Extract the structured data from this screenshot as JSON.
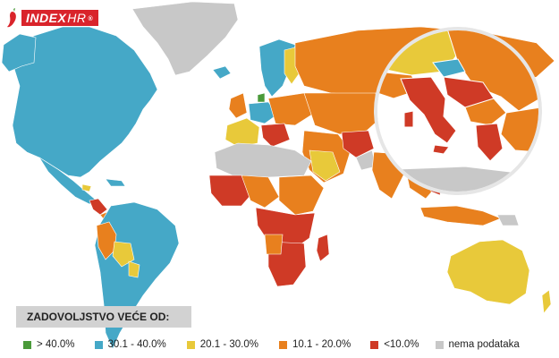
{
  "brand": {
    "name": "INDEX",
    "suffix": "HR",
    "mark": "®"
  },
  "legend": {
    "title": "ZADOVOLJSTVO VEĆE OD:",
    "items": [
      {
        "label": "> 40.0%",
        "color": "#4a9a3a"
      },
      {
        "label": "30.1 - 40.0%",
        "color": "#45a8c7"
      },
      {
        "label": "20.1 - 30.0%",
        "color": "#e8c93a"
      },
      {
        "label": "10.1 - 20.0%",
        "color": "#e8801e"
      },
      {
        "label": "<10.0%",
        "color": "#cf3a26"
      },
      {
        "label": "nema podataka",
        "color": "#c8c8c8"
      }
    ]
  },
  "colors": {
    "ocean": "#ffffff",
    "border": "#ffffff",
    "inset_ring": "#e6e6e6"
  }
}
